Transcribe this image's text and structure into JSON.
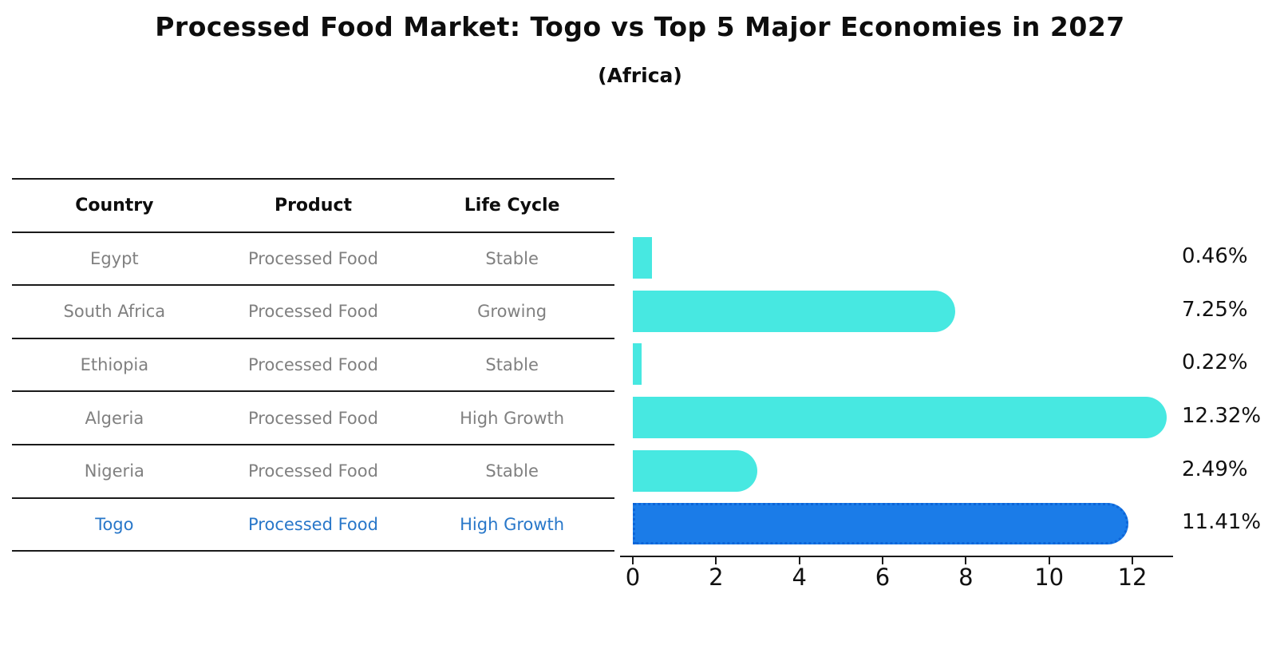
{
  "title": "Processed Food Market: Togo vs Top 5 Major Economies in 2027",
  "subtitle": "(Africa)",
  "table": {
    "headers": [
      "Country",
      "Product",
      "Life Cycle"
    ],
    "rows": [
      {
        "country": "Egypt",
        "product": "Processed Food",
        "life_cycle": "Stable",
        "highlight": false
      },
      {
        "country": "South Africa",
        "product": "Processed Food",
        "life_cycle": "Growing",
        "highlight": false
      },
      {
        "country": "Ethiopia",
        "product": "Processed Food",
        "life_cycle": "Stable",
        "highlight": false
      },
      {
        "country": "Algeria",
        "product": "Processed Food",
        "life_cycle": "High Growth",
        "highlight": false
      },
      {
        "country": "Nigeria",
        "product": "Processed Food",
        "life_cycle": "Stable",
        "highlight": false
      },
      {
        "country": "Togo",
        "product": "Processed Food",
        "life_cycle": "High Growth",
        "highlight": true
      }
    ]
  },
  "chart_data": {
    "type": "bar",
    "orientation": "horizontal",
    "title": "Processed Food Market: Togo vs Top 5 Major Economies in 2027 (Africa)",
    "categories": [
      "Egypt",
      "South Africa",
      "Ethiopia",
      "Algeria",
      "Nigeria",
      "Togo"
    ],
    "values": [
      0.46,
      7.25,
      0.22,
      12.32,
      2.49,
      11.41
    ],
    "value_labels": [
      "0.46%",
      "7.25%",
      "0.22%",
      "12.32%",
      "2.49%",
      "11.41%"
    ],
    "highlight_index": 5,
    "x_ticks": [
      "0",
      "2",
      "4",
      "6",
      "8",
      "10",
      "12"
    ],
    "x_tick_values": [
      0,
      2,
      4,
      6,
      8,
      10,
      12
    ],
    "xlim": [
      0,
      13
    ],
    "grid": false,
    "legend": "none",
    "bar_color": "#47e8e1",
    "highlight_bar_color": "#1b7ce8",
    "highlight_border_color": "#0d65d8",
    "highlight_text_color": "#2877c9",
    "text_color": "#808080",
    "header_text_color": "#0d0d0d"
  }
}
